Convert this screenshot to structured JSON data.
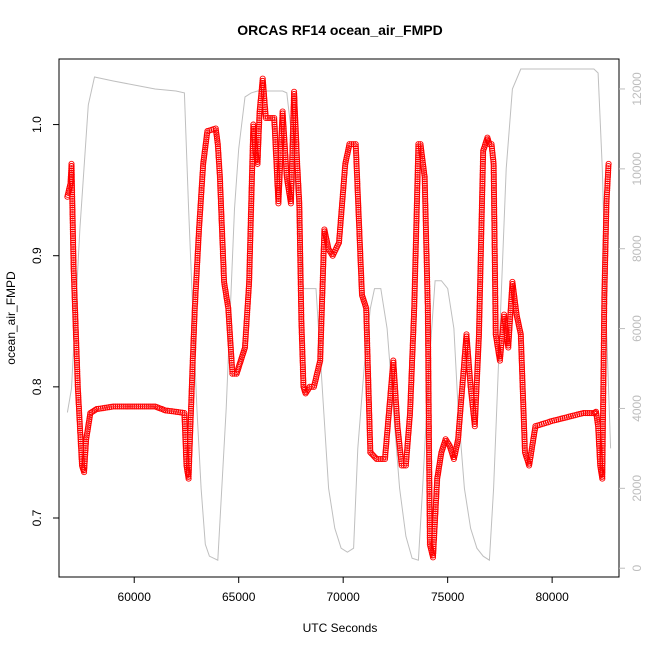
{
  "chart_data": {
    "type": "scatter",
    "title": "ORCAS RF14 ocean_air_FMPD",
    "xlabel": "UTC Seconds",
    "ylabel": "ocean_air_FMPD",
    "xlim": [
      56400,
      83200
    ],
    "ylim": [
      0.655,
      1.05
    ],
    "y2lim": [
      -220,
      12750
    ],
    "x_ticks": [
      60000,
      65000,
      70000,
      75000,
      80000
    ],
    "y_ticks": [
      0.7,
      0.8,
      0.9,
      1.0
    ],
    "y2_ticks": [
      0,
      2000,
      4000,
      6000,
      8000,
      10000,
      12000
    ],
    "marker_color": "#ff0000",
    "line_color": "#bfbfbf",
    "grid": false,
    "series": [
      {
        "marker": "open-circle",
        "color": "#ff0000",
        "x": [
          56800,
          56950,
          57000,
          57100,
          57300,
          57500,
          57600,
          57700,
          57900,
          58200,
          59000,
          60000,
          61000,
          61500,
          62000,
          62400,
          62500,
          62600,
          62800,
          62900,
          63100,
          63300,
          63500,
          63700,
          63900,
          64000,
          64100,
          64300,
          64500,
          64700,
          64900,
          65000,
          65100,
          65300,
          65500,
          65600,
          65700,
          65800,
          65900,
          66000,
          66150,
          66300,
          66500,
          66700,
          66900,
          67100,
          67300,
          67500,
          67650,
          67800,
          67900,
          68000,
          68100,
          68200,
          68400,
          68600,
          68900,
          69100,
          69300,
          69500,
          69800,
          70000,
          70100,
          70300,
          70600,
          70900,
          71100,
          71300,
          71600,
          72000,
          72400,
          72600,
          72800,
          73000,
          73200,
          73400,
          73600,
          73700,
          73900,
          74050,
          74150,
          74300,
          74500,
          74700,
          74900,
          75100,
          75300,
          75500,
          75700,
          75900,
          76100,
          76300,
          76500,
          76700,
          76900,
          77000,
          77100,
          77200,
          77300,
          77500,
          77700,
          77900,
          78100,
          78300,
          78500,
          78700,
          78900,
          79200,
          79600,
          80000,
          80500,
          81000,
          81500,
          82000,
          82100,
          82200,
          82300,
          82400,
          82500,
          82600,
          82700
        ],
        "y": [
          0.945,
          0.955,
          0.97,
          0.89,
          0.8,
          0.74,
          0.735,
          0.76,
          0.78,
          0.783,
          0.785,
          0.785,
          0.785,
          0.782,
          0.781,
          0.78,
          0.74,
          0.73,
          0.82,
          0.86,
          0.92,
          0.97,
          0.995,
          0.996,
          0.997,
          0.985,
          0.96,
          0.88,
          0.86,
          0.81,
          0.81,
          0.815,
          0.82,
          0.83,
          0.88,
          0.94,
          1.0,
          0.98,
          0.97,
          1.01,
          1.035,
          1.005,
          1.005,
          1.005,
          0.94,
          1.01,
          0.96,
          0.94,
          1.025,
          0.97,
          0.94,
          0.85,
          0.8,
          0.795,
          0.8,
          0.8,
          0.82,
          0.92,
          0.905,
          0.9,
          0.91,
          0.95,
          0.97,
          0.985,
          0.985,
          0.87,
          0.86,
          0.75,
          0.745,
          0.745,
          0.82,
          0.77,
          0.74,
          0.74,
          0.78,
          0.86,
          0.985,
          0.985,
          0.96,
          0.86,
          0.68,
          0.67,
          0.73,
          0.75,
          0.76,
          0.755,
          0.745,
          0.76,
          0.8,
          0.84,
          0.8,
          0.77,
          0.84,
          0.98,
          0.99,
          0.985,
          0.985,
          0.97,
          0.84,
          0.82,
          0.855,
          0.83,
          0.88,
          0.855,
          0.84,
          0.75,
          0.74,
          0.77,
          0.772,
          0.774,
          0.776,
          0.778,
          0.78,
          0.78,
          0.781,
          0.77,
          0.74,
          0.73,
          0.87,
          0.94,
          0.97
        ]
      },
      {
        "marker": "line",
        "color": "#bfbfbf",
        "axis": "right",
        "x": [
          56800,
          57000,
          57400,
          57800,
          58100,
          59000,
          60000,
          61000,
          62000,
          62400,
          62600,
          62800,
          63000,
          63200,
          63400,
          63600,
          63800,
          64000,
          64400,
          64800,
          65000,
          65300,
          65600,
          65900,
          66300,
          66600,
          66900,
          67100,
          67300,
          67500,
          67800,
          68100,
          68400,
          68700,
          69000,
          69300,
          69600,
          69900,
          70200,
          70500,
          70700,
          71000,
          71300,
          71500,
          71800,
          72100,
          72400,
          72700,
          73000,
          73300,
          73600,
          73800,
          74100,
          74400,
          74700,
          75000,
          75300,
          75500,
          75800,
          76100,
          76400,
          76700,
          77000,
          77200,
          77500,
          77800,
          78100,
          78500,
          79000,
          79500,
          80000,
          81000,
          82000,
          82200,
          82400,
          82600,
          82800
        ],
        "y": [
          3900,
          4500,
          8500,
          11600,
          12300,
          12200,
          12100,
          12000,
          11950,
          11900,
          9000,
          6500,
          4000,
          2000,
          600,
          300,
          250,
          200,
          4000,
          9000,
          10500,
          11800,
          11900,
          11950,
          11950,
          11950,
          11950,
          11950,
          11900,
          11000,
          9000,
          7000,
          7000,
          7000,
          4500,
          2000,
          1000,
          500,
          400,
          500,
          3000,
          5000,
          6500,
          7000,
          7000,
          6000,
          4000,
          2000,
          800,
          250,
          200,
          2000,
          5000,
          7200,
          7200,
          7000,
          6000,
          4000,
          2000,
          1000,
          500,
          300,
          200,
          2000,
          6000,
          10000,
          12000,
          12500,
          12500,
          12500,
          12500,
          12500,
          12500,
          12400,
          10000,
          6000,
          3000
        ]
      }
    ]
  }
}
